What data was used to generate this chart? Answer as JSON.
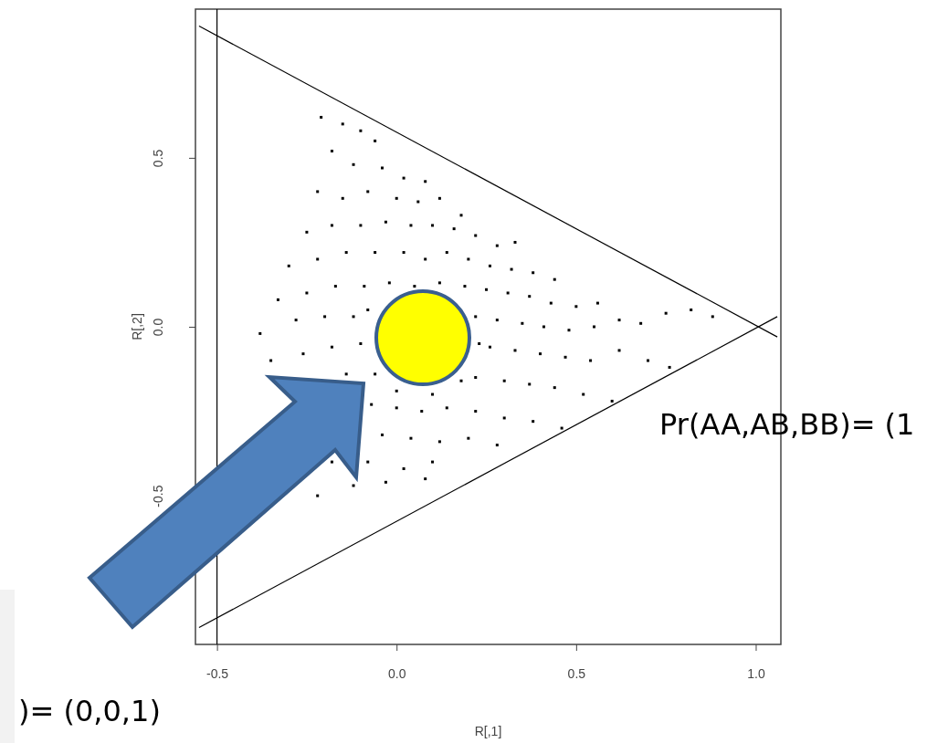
{
  "chart_data": {
    "type": "scatter",
    "xlabel": "R[,1]",
    "ylabel": "R[,2]",
    "xlim": [
      -0.56,
      1.07
    ],
    "ylim": [
      -0.94,
      0.94
    ],
    "xticks": [
      {
        "value": -0.5,
        "label": "-0.5"
      },
      {
        "value": 0,
        "label": "0.0"
      },
      {
        "value": 0.5,
        "label": "0.5"
      },
      {
        "value": 1,
        "label": "1.0"
      }
    ],
    "yticks": [
      {
        "value": -0.5,
        "label": "-0.5"
      },
      {
        "value": 0,
        "label": "0.0"
      },
      {
        "value": 0.5,
        "label": "0.5"
      }
    ],
    "legend": false,
    "ref_lines": [
      {
        "axis": "x",
        "value": -0.5,
        "color": "#000000"
      }
    ],
    "annotations": [
      "Pr(AA,AB,BB)= (1",
      ")= (0,0,1)"
    ],
    "series": [
      {
        "marker": "square",
        "color": "#000000",
        "x": [
          -0.21,
          -0.15,
          -0.1,
          -0.06,
          -0.18,
          -0.12,
          -0.04,
          0.02,
          0.08,
          -0.22,
          -0.15,
          -0.08,
          0.0,
          0.06,
          0.12,
          0.18,
          -0.25,
          -0.18,
          -0.1,
          -0.03,
          0.04,
          0.1,
          0.16,
          0.22,
          0.28,
          0.33,
          -0.3,
          -0.22,
          -0.14,
          -0.06,
          0.02,
          0.08,
          0.14,
          0.2,
          0.26,
          0.32,
          0.38,
          0.44,
          -0.33,
          -0.25,
          -0.17,
          -0.09,
          -0.02,
          0.05,
          0.12,
          0.19,
          0.25,
          0.31,
          0.37,
          0.43,
          0.5,
          0.56,
          -0.38,
          -0.28,
          -0.2,
          -0.12,
          -0.08,
          0.22,
          0.28,
          0.35,
          0.41,
          0.48,
          0.55,
          0.62,
          0.68,
          0.75,
          0.82,
          0.88,
          -0.35,
          -0.26,
          -0.18,
          -0.1,
          0.23,
          0.26,
          0.33,
          0.4,
          0.47,
          0.54,
          0.62,
          0.7,
          0.76,
          -0.14,
          -0.06,
          0.0,
          0.1,
          0.18,
          0.22,
          0.3,
          0.37,
          0.44,
          0.52,
          0.6,
          -0.07,
          0.0,
          0.07,
          0.14,
          0.22,
          0.3,
          0.38,
          0.46,
          -0.04,
          0.04,
          0.12,
          0.2,
          0.28,
          -0.18,
          -0.08,
          0.02,
          0.1,
          -0.22,
          -0.12,
          -0.03,
          0.08
        ],
        "values": [
          0.62,
          0.6,
          0.58,
          0.55,
          0.52,
          0.48,
          0.47,
          0.44,
          0.43,
          0.4,
          0.38,
          0.4,
          0.38,
          0.37,
          0.38,
          0.33,
          0.28,
          0.3,
          0.3,
          0.31,
          0.3,
          0.3,
          0.29,
          0.27,
          0.24,
          0.25,
          0.18,
          0.2,
          0.22,
          0.22,
          0.22,
          0.2,
          0.22,
          0.2,
          0.18,
          0.17,
          0.16,
          0.14,
          0.08,
          0.1,
          0.12,
          0.12,
          0.13,
          0.12,
          0.13,
          0.12,
          0.11,
          0.1,
          0.09,
          0.07,
          0.06,
          0.07,
          -0.02,
          0.02,
          0.03,
          0.03,
          0.05,
          0.03,
          0.02,
          0.01,
          0.0,
          -0.01,
          0.0,
          0.02,
          0.01,
          0.04,
          0.05,
          0.03,
          -0.1,
          -0.08,
          -0.06,
          -0.05,
          -0.05,
          -0.06,
          -0.07,
          -0.08,
          -0.09,
          -0.1,
          -0.07,
          -0.1,
          -0.12,
          -0.14,
          -0.14,
          -0.19,
          -0.2,
          -0.16,
          -0.15,
          -0.16,
          -0.17,
          -0.18,
          -0.2,
          -0.22,
          -0.23,
          -0.24,
          -0.25,
          -0.24,
          -0.25,
          -0.27,
          -0.28,
          -0.3,
          -0.32,
          -0.33,
          -0.34,
          -0.33,
          -0.35,
          -0.4,
          -0.4,
          -0.42,
          -0.4,
          -0.5,
          -0.47,
          -0.46,
          -0.45
        ]
      },
      {
        "type": "line",
        "color": "#000000",
        "x": [
          -0.55,
          1.06
        ],
        "values": [
          0.89,
          -0.03
        ]
      },
      {
        "type": "line",
        "color": "#000000",
        "x": [
          -0.55,
          1.06
        ],
        "values": [
          -0.89,
          0.03
        ]
      }
    ]
  }
}
